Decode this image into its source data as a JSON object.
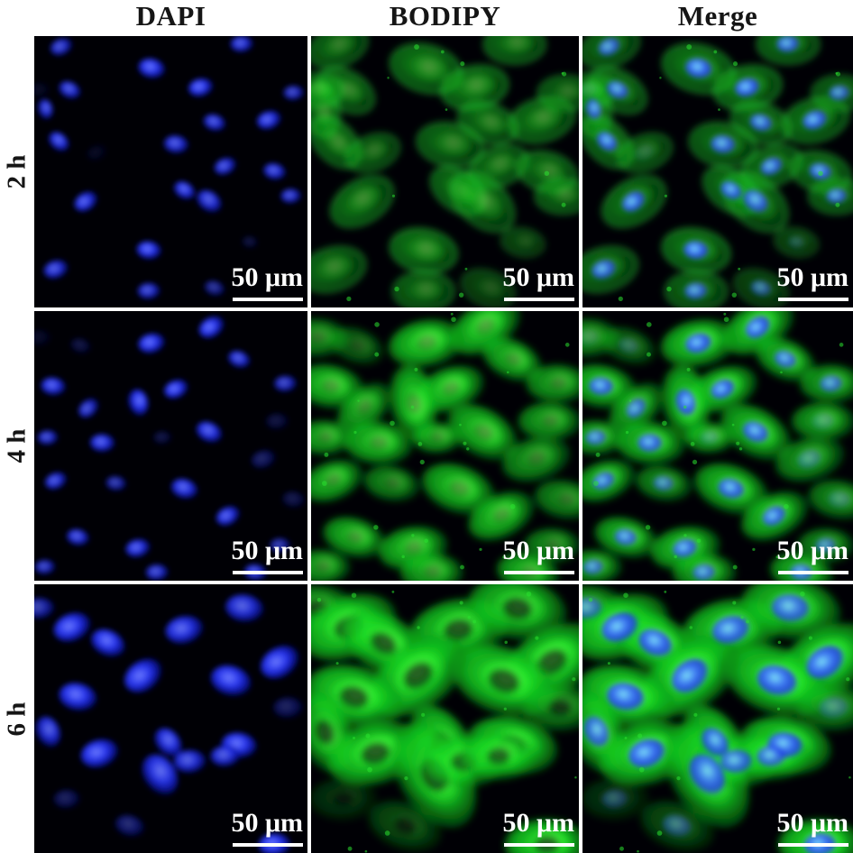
{
  "columns": [
    {
      "id": "dapi",
      "label": "DAPI"
    },
    {
      "id": "bodipy",
      "label": "BODIPY"
    },
    {
      "id": "merge",
      "label": "Merge"
    }
  ],
  "scale_bar": {
    "label": "50 μm"
  },
  "colors": {
    "background": "#ffffff",
    "panel_bg": "#000005",
    "header_text": "#151515",
    "scale_text": "#ffffff",
    "dapi_core": "#6e7dff",
    "dapi_mid": "#2533ea",
    "dapi_edge": "#0a12a0",
    "merge_nuc_core": "#7fe3f7",
    "merge_nuc_mid": "#3f7df2",
    "merge_nuc_edge": "#1c3ae0",
    "green_core": "#9cff70",
    "green_bright": "#2df02f",
    "green_mid": "#13cf1f",
    "green_edge": "#0a8f14",
    "ring_green": "#2be43a",
    "speck_green": "#2ae12f",
    "hole": "#03210a"
  },
  "cell_format_note": "cells: x,y in % of panel; rot deg; s size factor; b brightness 0-1; d DAPI-channel visibility; g green-channel visibility",
  "rows": [
    {
      "id": "2h",
      "label": "2 h",
      "nucleus_scale": 1.0,
      "body_scale": 1.0,
      "green": {
        "ring": true,
        "fill_op": 0.6,
        "core_op": 0.9,
        "hole": 0
      },
      "speck_seed": 11,
      "speck_count": 14,
      "cells": [
        {
          "x": 10,
          "y": 4,
          "rot": -20,
          "s": 1,
          "b": 0.85
        },
        {
          "x": 43,
          "y": 12,
          "rot": 15,
          "s": 1.2,
          "b": 1
        },
        {
          "x": 61,
          "y": 19,
          "rot": -10,
          "s": 1.1,
          "b": 1
        },
        {
          "x": 13,
          "y": 20,
          "rot": 30,
          "s": 1,
          "b": 0.9
        },
        {
          "x": 4,
          "y": 27,
          "rot": 80,
          "s": 0.9,
          "b": 0.9
        },
        {
          "x": 76,
          "y": 3,
          "rot": 0,
          "s": 1,
          "b": 0.9
        },
        {
          "x": 95,
          "y": 21,
          "rot": 0,
          "s": 0.9,
          "b": 0.8
        },
        {
          "x": 86,
          "y": 31,
          "rot": -15,
          "s": 1.1,
          "b": 0.95
        },
        {
          "x": 66,
          "y": 32,
          "rot": 20,
          "s": 1,
          "b": 0.9
        },
        {
          "x": 9,
          "y": 39,
          "rot": 45,
          "s": 1,
          "b": 0.95
        },
        {
          "x": 52,
          "y": 40,
          "rot": 10,
          "s": 1.1,
          "b": 0.9
        },
        {
          "x": 23,
          "y": 43,
          "rot": -20,
          "s": 0.9,
          "b": 0.8,
          "d": 0.15
        },
        {
          "x": 2,
          "y": 20,
          "rot": 0,
          "s": 0.9,
          "b": 0.8,
          "d": 0.15
        },
        {
          "x": 70,
          "y": 48,
          "rot": -20,
          "s": 1,
          "b": 0.9
        },
        {
          "x": 88,
          "y": 50,
          "rot": 15,
          "s": 1,
          "b": 0.9
        },
        {
          "x": 55,
          "y": 57,
          "rot": 35,
          "s": 1,
          "b": 0.95
        },
        {
          "x": 64,
          "y": 61,
          "rot": 40,
          "s": 1.2,
          "b": 0.9
        },
        {
          "x": 94,
          "y": 59,
          "rot": 0,
          "s": 0.9,
          "b": 0.85
        },
        {
          "x": 19,
          "y": 61,
          "rot": -30,
          "s": 1.1,
          "b": 0.95
        },
        {
          "x": 79,
          "y": 76,
          "rot": 10,
          "s": 0.7,
          "b": 0.6,
          "d": 0.4
        },
        {
          "x": 42,
          "y": 79,
          "rot": 10,
          "s": 1.1,
          "b": 1
        },
        {
          "x": 8,
          "y": 86,
          "rot": -15,
          "s": 1.1,
          "b": 0.9
        },
        {
          "x": 42,
          "y": 94,
          "rot": 0,
          "s": 1,
          "b": 0.85
        },
        {
          "x": 66,
          "y": 93,
          "rot": 20,
          "s": 0.9,
          "b": 0.6
        }
      ]
    },
    {
      "id": "4h",
      "label": "4 h",
      "nucleus_scale": 1.0,
      "body_scale": 1.08,
      "green": {
        "ring": false,
        "fill_op": 0.92,
        "core_op": 1,
        "hole": 0.3
      },
      "speck_seed": 23,
      "speck_count": 26,
      "cells": [
        {
          "x": 65,
          "y": 6,
          "rot": -30,
          "s": 1.2,
          "b": 1
        },
        {
          "x": 43,
          "y": 12,
          "rot": -10,
          "s": 1.2,
          "b": 1
        },
        {
          "x": 2,
          "y": 10,
          "rot": 0,
          "s": 1,
          "b": 0.7,
          "d": 0.2
        },
        {
          "x": 17,
          "y": 13,
          "rot": 20,
          "s": 0.9,
          "b": 0.5,
          "d": 0.5
        },
        {
          "x": 75,
          "y": 18,
          "rot": 25,
          "s": 1,
          "b": 0.9
        },
        {
          "x": 92,
          "y": 27,
          "rot": 0,
          "s": 1,
          "b": 0.8
        },
        {
          "x": 7,
          "y": 28,
          "rot": 10,
          "s": 1.1,
          "b": 0.95
        },
        {
          "x": 52,
          "y": 29,
          "rot": -20,
          "s": 1.1,
          "b": 1
        },
        {
          "x": 38,
          "y": 34,
          "rot": 80,
          "s": 1.2,
          "b": 1
        },
        {
          "x": 20,
          "y": 36,
          "rot": -40,
          "s": 1,
          "b": 0.85
        },
        {
          "x": 89,
          "y": 41,
          "rot": 0,
          "s": 1,
          "b": 0.8,
          "d": 0.3
        },
        {
          "x": 5,
          "y": 47,
          "rot": 0,
          "s": 0.9,
          "b": 0.85
        },
        {
          "x": 25,
          "y": 49,
          "rot": 5,
          "s": 1.1,
          "b": 0.95
        },
        {
          "x": 47,
          "y": 47,
          "rot": 0,
          "s": 0.8,
          "b": 0.85,
          "d": 0.3
        },
        {
          "x": 64,
          "y": 45,
          "rot": 30,
          "s": 1.2,
          "b": 0.95
        },
        {
          "x": 84,
          "y": 55,
          "rot": -15,
          "s": 1.1,
          "b": 0.75,
          "d": 0.5
        },
        {
          "x": 8,
          "y": 63,
          "rot": -20,
          "s": 1,
          "b": 0.9
        },
        {
          "x": 30,
          "y": 64,
          "rot": 10,
          "s": 0.9,
          "b": 0.7
        },
        {
          "x": 55,
          "y": 66,
          "rot": 20,
          "s": 1.2,
          "b": 0.95
        },
        {
          "x": 71,
          "y": 76,
          "rot": -25,
          "s": 1.1,
          "b": 0.95
        },
        {
          "x": 95,
          "y": 70,
          "rot": 10,
          "s": 1,
          "b": 0.7,
          "d": 0.4
        },
        {
          "x": 16,
          "y": 84,
          "rot": 15,
          "s": 1,
          "b": 0.9
        },
        {
          "x": 38,
          "y": 88,
          "rot": -10,
          "s": 1.1,
          "b": 0.95
        },
        {
          "x": 90,
          "y": 87,
          "rot": 0,
          "s": 0.9,
          "b": 0.7
        },
        {
          "x": 4,
          "y": 95,
          "rot": 0,
          "s": 0.9,
          "b": 0.8
        },
        {
          "x": 45,
          "y": 97,
          "rot": 0,
          "s": 1,
          "b": 0.85
        },
        {
          "x": 81,
          "y": 97,
          "rot": 10,
          "s": 1,
          "b": 0.9
        }
      ]
    },
    {
      "id": "6h",
      "label": "6 h",
      "nucleus_scale": 1.3,
      "body_scale": 1.3,
      "green": {
        "ring": false,
        "fill_op": 1,
        "core_op": 1,
        "hole": 0.7
      },
      "speck_seed": 37,
      "speck_count": 22,
      "cells": [
        {
          "x": 2,
          "y": 9,
          "rot": 0,
          "s": 1,
          "b": 0.7
        },
        {
          "x": 14,
          "y": 16,
          "rot": -20,
          "s": 1.3,
          "b": 1
        },
        {
          "x": 27,
          "y": 22,
          "rot": 30,
          "s": 1.2,
          "b": 1
        },
        {
          "x": 55,
          "y": 17,
          "rot": -10,
          "s": 1.3,
          "b": 0.95
        },
        {
          "x": 77,
          "y": 9,
          "rot": 10,
          "s": 1.3,
          "b": 0.9
        },
        {
          "x": 90,
          "y": 29,
          "rot": -30,
          "s": 1.4,
          "b": 1
        },
        {
          "x": 72,
          "y": 36,
          "rot": 20,
          "s": 1.4,
          "b": 1
        },
        {
          "x": 40,
          "y": 34,
          "rot": -35,
          "s": 1.4,
          "b": 1
        },
        {
          "x": 16,
          "y": 42,
          "rot": 15,
          "s": 1.3,
          "b": 1
        },
        {
          "x": 93,
          "y": 46,
          "rot": 0,
          "s": 1,
          "b": 0.6,
          "d": 0.6
        },
        {
          "x": 5,
          "y": 55,
          "rot": 70,
          "s": 1.1,
          "b": 0.9
        },
        {
          "x": 24,
          "y": 63,
          "rot": -15,
          "s": 1.3,
          "b": 1
        },
        {
          "x": 49,
          "y": 59,
          "rot": 55,
          "s": 1.1,
          "b": 0.95
        },
        {
          "x": 46,
          "y": 71,
          "rot": 60,
          "s": 1.5,
          "b": 0.95
        },
        {
          "x": 57,
          "y": 66,
          "rot": 0,
          "s": 1.1,
          "b": 0.9
        },
        {
          "x": 75,
          "y": 60,
          "rot": 10,
          "s": 1.2,
          "b": 1
        },
        {
          "x": 70,
          "y": 64,
          "rot": 0,
          "s": 1,
          "b": 0.9
        },
        {
          "x": 12,
          "y": 80,
          "rot": 0,
          "s": 0.9,
          "b": 0.35,
          "g": 0.7
        },
        {
          "x": 35,
          "y": 90,
          "rot": 20,
          "s": 1,
          "b": 0.45,
          "g": 0.8
        },
        {
          "x": 88,
          "y": 97,
          "rot": 0,
          "s": 1.1,
          "b": 1
        }
      ]
    }
  ]
}
